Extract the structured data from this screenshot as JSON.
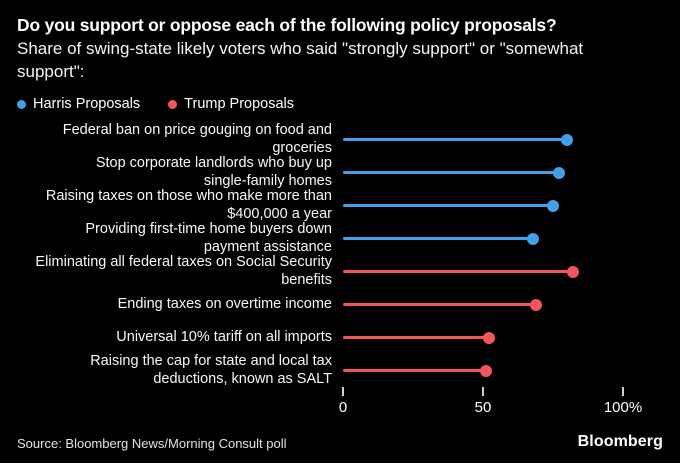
{
  "frame": {
    "background": "#000000"
  },
  "header": {
    "title": "Do you support or oppose each of the following policy proposals?",
    "subtitle": "Share of swing-state likely voters who said \"strongly support\" or \"somewhat support\":",
    "subtitle_lines": [
      "Share of swing-state likely voters who said \"strongly support\" or \"somewhat",
      "support\":"
    ]
  },
  "legend": [
    {
      "label": "Harris Proposals",
      "color": "#41A1E8"
    },
    {
      "label": "Trump Proposals",
      "color": "#F4555C"
    }
  ],
  "chart_data": {
    "type": "scatter",
    "variant": "horizontal-lollipop-dot-plot",
    "title": "Do you support or oppose each of the following policy proposals?",
    "xlabel": "",
    "ylabel": "",
    "xlim": [
      0,
      100
    ],
    "grid": false,
    "legend_position": "top-left",
    "x_ticks": [
      {
        "label": "0",
        "value": 0
      },
      {
        "label": "50",
        "value": 50
      },
      {
        "label": "100%",
        "value": 100
      }
    ],
    "series_colors": {
      "Harris Proposals": "#41A1E8",
      "Trump Proposals": "#F4555C"
    },
    "rows": [
      {
        "label_lines": [
          "Federal ban on price gouging on food and",
          "groceries"
        ],
        "series": "Harris Proposals",
        "value": 80
      },
      {
        "label_lines": [
          "Stop corporate landlords who buy up",
          "single-family homes"
        ],
        "series": "Harris Proposals",
        "value": 77
      },
      {
        "label_lines": [
          "Raising taxes on those who make more than",
          "$400,000 a year"
        ],
        "series": "Harris Proposals",
        "value": 75
      },
      {
        "label_lines": [
          "Providing first-time home buyers down",
          "payment assistance"
        ],
        "series": "Harris Proposals",
        "value": 68
      },
      {
        "label_lines": [
          "Eliminating all federal taxes on Social Security",
          "benefits"
        ],
        "series": "Trump Proposals",
        "value": 82
      },
      {
        "label_lines": [
          "Ending taxes on overtime income"
        ],
        "series": "Trump Proposals",
        "value": 69
      },
      {
        "label_lines": [
          "Universal 10% tariff on all imports"
        ],
        "series": "Trump Proposals",
        "value": 52
      },
      {
        "label_lines": [
          "Raising the cap for state and local tax",
          "deductions, known as SALT"
        ],
        "series": "Trump Proposals",
        "value": 51
      }
    ]
  },
  "footer": {
    "source": "Source: Bloomberg News/Morning Consult poll",
    "logo": "Bloomberg"
  }
}
